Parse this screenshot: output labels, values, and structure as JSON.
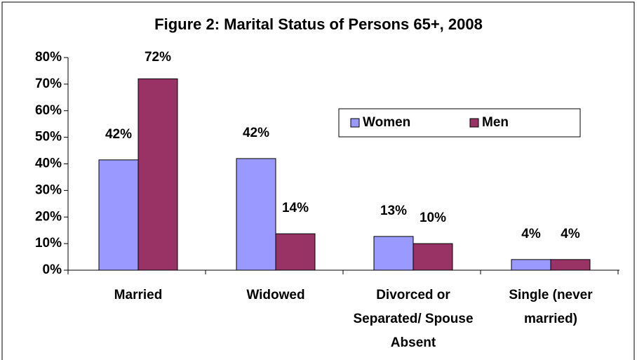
{
  "chart_data": {
    "type": "bar",
    "title": "Figure 2: Marital Status of Persons 65+, 2008",
    "categories": [
      "Married",
      "Widowed",
      "Divorced or Separated/ Spouse Absent",
      "Single (never married)"
    ],
    "series": [
      {
        "name": "Women",
        "color": "#9999ff",
        "values": [
          41.5,
          42,
          12.7,
          4
        ],
        "value_labels": [
          "42%",
          "42%",
          "13%",
          "4%"
        ]
      },
      {
        "name": "Men",
        "color": "#993366",
        "values": [
          72,
          13.7,
          10,
          4
        ],
        "value_labels": [
          "72%",
          "14%",
          "10%",
          "4%"
        ]
      }
    ],
    "ylim": [
      0,
      80
    ],
    "yticks": [
      {
        "value": 0,
        "label": "0%"
      },
      {
        "value": 10,
        "label": "10%"
      },
      {
        "value": 20,
        "label": "20%"
      },
      {
        "value": 30,
        "label": "30%"
      },
      {
        "value": 40,
        "label": "40%"
      },
      {
        "value": 50,
        "label": "50%"
      },
      {
        "value": 60,
        "label": "60%"
      },
      {
        "value": 70,
        "label": "70%"
      },
      {
        "value": 80,
        "label": "80%"
      }
    ],
    "grid": false,
    "legend": "right"
  }
}
